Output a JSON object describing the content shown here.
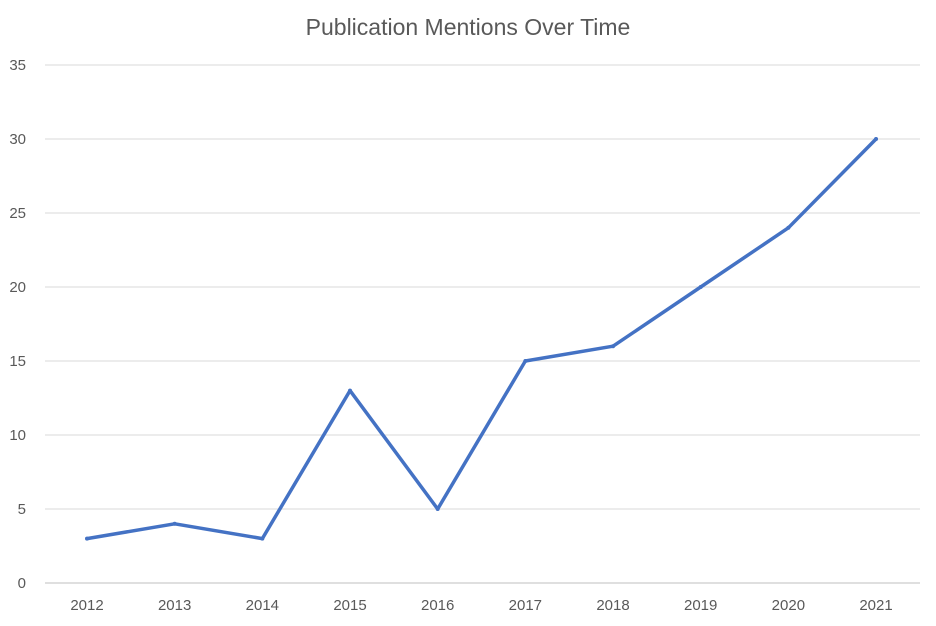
{
  "chart_data": {
    "type": "line",
    "title": "Publication Mentions Over Time",
    "xlabel": "",
    "ylabel": "",
    "categories": [
      "2012",
      "2013",
      "2014",
      "2015",
      "2016",
      "2017",
      "2018",
      "2019",
      "2020",
      "2021"
    ],
    "series": [
      {
        "values": [
          3,
          4,
          3,
          13,
          5,
          15,
          16,
          20,
          24,
          30
        ]
      }
    ],
    "ylim": [
      0,
      35
    ],
    "yticks": [
      0,
      5,
      10,
      15,
      20,
      25,
      30,
      35
    ],
    "grid": true,
    "legend": "none",
    "colors": {
      "line": "#4472C4",
      "grid": "#D9D9D9",
      "axis": "#BFBFBF",
      "text": "#595959"
    }
  }
}
